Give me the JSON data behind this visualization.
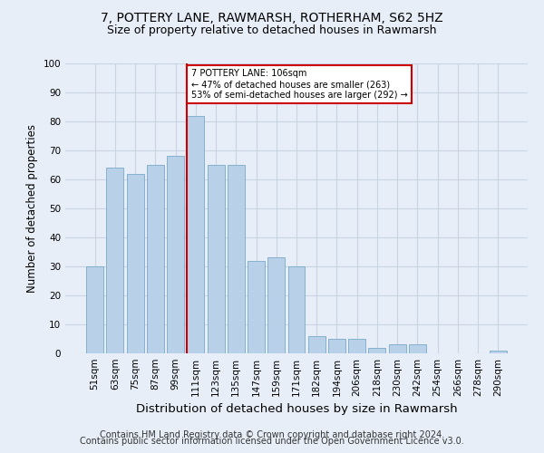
{
  "title1": "7, POTTERY LANE, RAWMARSH, ROTHERHAM, S62 5HZ",
  "title2": "Size of property relative to detached houses in Rawmarsh",
  "xlabel": "Distribution of detached houses by size in Rawmarsh",
  "ylabel": "Number of detached properties",
  "categories": [
    "51sqm",
    "63sqm",
    "75sqm",
    "87sqm",
    "99sqm",
    "111sqm",
    "123sqm",
    "135sqm",
    "147sqm",
    "159sqm",
    "171sqm",
    "182sqm",
    "194sqm",
    "206sqm",
    "218sqm",
    "230sqm",
    "242sqm",
    "254sqm",
    "266sqm",
    "278sqm",
    "290sqm"
  ],
  "values": [
    30,
    64,
    62,
    65,
    68,
    82,
    65,
    65,
    32,
    33,
    30,
    6,
    5,
    5,
    2,
    3,
    3,
    0,
    0,
    0,
    1
  ],
  "bar_color": "#b8d0e8",
  "bar_edge_color": "#7aaac8",
  "highlight_index": 5,
  "highlight_line_color": "#cc0000",
  "background_color": "#e8eef8",
  "annotation_text": "7 POTTERY LANE: 106sqm\n← 47% of detached houses are smaller (263)\n53% of semi-detached houses are larger (292) →",
  "annotation_box_color": "white",
  "annotation_box_edge": "#cc0000",
  "footer1": "Contains HM Land Registry data © Crown copyright and database right 2024.",
  "footer2": "Contains public sector information licensed under the Open Government Licence v3.0.",
  "ylim": [
    0,
    100
  ],
  "yticks": [
    0,
    10,
    20,
    30,
    40,
    50,
    60,
    70,
    80,
    90,
    100
  ],
  "grid_color": "#c8d4e4",
  "title_fontsize": 10,
  "subtitle_fontsize": 9,
  "axis_label_fontsize": 8.5,
  "tick_fontsize": 7.5,
  "footer_fontsize": 7
}
